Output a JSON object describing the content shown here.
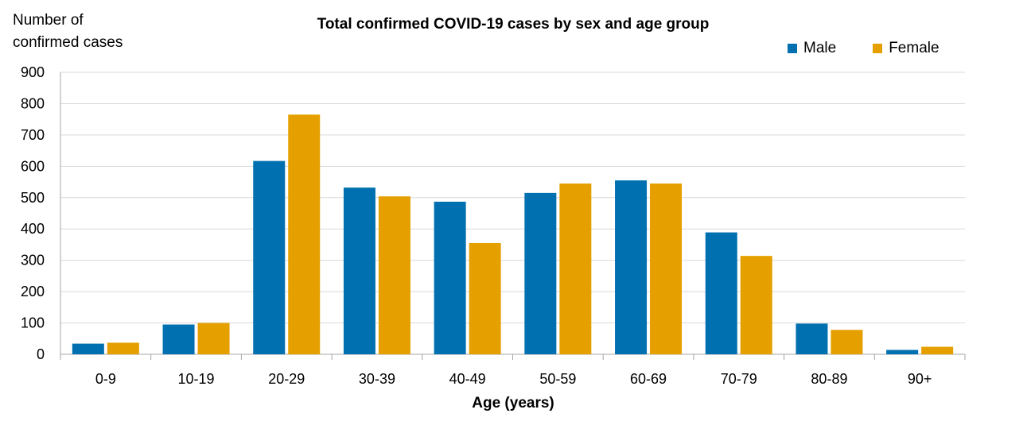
{
  "chart_data": {
    "type": "bar",
    "title": "Total confirmed COVID-19 cases by sex and age group",
    "ylabel": "Number of confirmed cases",
    "xlabel": "Age (years)",
    "ylim": [
      0,
      900
    ],
    "yticks": [
      0,
      100,
      200,
      300,
      400,
      500,
      600,
      700,
      800,
      900
    ],
    "grid": true,
    "legend_position": "top-right",
    "categories": [
      "0-9",
      "10-19",
      "20-29",
      "30-39",
      "40-49",
      "50-59",
      "60-69",
      "70-79",
      "80-89",
      "90+"
    ],
    "series": [
      {
        "name": "Male",
        "color": "#0070b0",
        "values": [
          34,
          95,
          617,
          532,
          487,
          515,
          555,
          389,
          98,
          14
        ]
      },
      {
        "name": "Female",
        "color": "#e5a000",
        "values": [
          37,
          100,
          765,
          504,
          355,
          545,
          545,
          314,
          78,
          24
        ]
      }
    ]
  }
}
